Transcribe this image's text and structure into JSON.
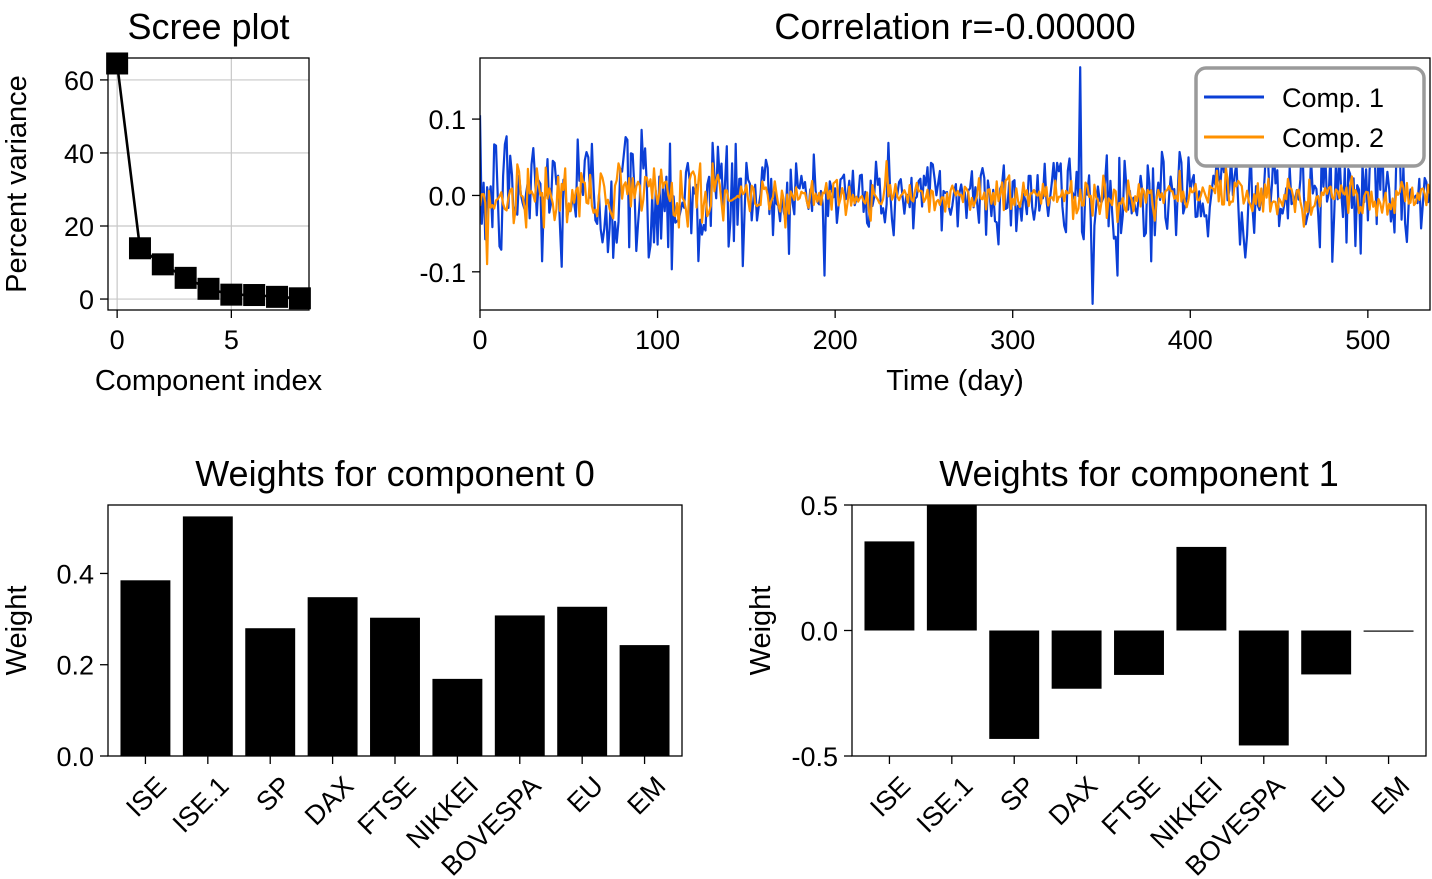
{
  "chart_data": [
    {
      "id": "scree",
      "type": "line",
      "title": "Scree plot",
      "xlabel": "Component index",
      "ylabel": "Percent variance",
      "xlim": [
        -0.4,
        8.4
      ],
      "ylim": [
        -3,
        66
      ],
      "xticks": [
        0,
        5
      ],
      "yticks": [
        0,
        20,
        40,
        60
      ],
      "grid": true,
      "marker": "square",
      "x": [
        0,
        1,
        2,
        3,
        4,
        5,
        6,
        7,
        8
      ],
      "values": [
        64.5,
        13.9,
        9.5,
        5.8,
        2.8,
        1.2,
        1.1,
        0.6,
        0.2
      ]
    },
    {
      "id": "timeseries",
      "type": "line",
      "title": "Correlation r=-0.00000",
      "xlabel": "Time (day)",
      "ylabel": "",
      "xlim": [
        0,
        535
      ],
      "ylim": [
        -0.15,
        0.18
      ],
      "xticks": [
        0,
        100,
        200,
        300,
        400,
        500
      ],
      "yticks": [
        -0.1,
        0.0,
        0.1
      ],
      "ytick_labels": [
        "-0.1",
        "0.0",
        "0.1"
      ],
      "legend_position": "top-right",
      "series": [
        {
          "name": "Comp. 1",
          "color": "#0b3fd6",
          "amplitude": 0.035,
          "peak_x": 338,
          "peak_y": 0.168,
          "trough_x": 345,
          "trough_y": -0.142
        },
        {
          "name": "Comp. 2",
          "color": "#ff9100",
          "amplitude": 0.014,
          "peak_x": 229,
          "peak_y": 0.045,
          "trough_x": 4,
          "trough_y": -0.09
        }
      ]
    },
    {
      "id": "weights0",
      "type": "bar",
      "title": "Weights for component 0",
      "xlabel": "",
      "ylabel": "Weight",
      "ylim": [
        0,
        0.55
      ],
      "yticks": [
        0.0,
        0.2,
        0.4
      ],
      "ytick_labels": [
        "0.0",
        "0.2",
        "0.4"
      ],
      "categories": [
        "ISE",
        "ISE.1",
        "SP",
        "DAX",
        "FTSE",
        "NIKKEI",
        "BOVESPA",
        "EU",
        "EM"
      ],
      "values": [
        0.385,
        0.525,
        0.28,
        0.348,
        0.303,
        0.169,
        0.308,
        0.327,
        0.243
      ]
    },
    {
      "id": "weights1",
      "type": "bar",
      "title": "Weights for component 1",
      "xlabel": "",
      "ylabel": "Weight",
      "ylim": [
        -0.5,
        0.5
      ],
      "yticks": [
        -0.5,
        0.0,
        0.5
      ],
      "ytick_labels": [
        "-0.5",
        "0.0",
        "0.5"
      ],
      "categories": [
        "ISE",
        "ISE.1",
        "SP",
        "DAX",
        "FTSE",
        "NIKKEI",
        "BOVESPA",
        "EU",
        "EM"
      ],
      "values": [
        0.355,
        0.498,
        -0.432,
        -0.232,
        -0.177,
        0.333,
        -0.458,
        -0.175,
        -0.004
      ]
    }
  ]
}
